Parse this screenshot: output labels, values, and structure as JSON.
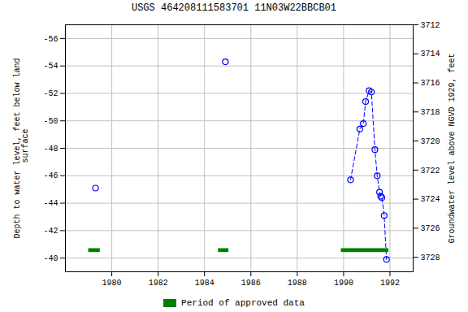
{
  "chart_data": {
    "type": "line",
    "title": "USGS 464208111583701 11N03W22BBCB01",
    "ylabel": "Depth to water level, feet below land\n surface",
    "y2label": "Groundwater level above NGVD 1929, feet",
    "xlim": [
      1978,
      1993
    ],
    "xticks": [
      1980,
      1982,
      1984,
      1986,
      1988,
      1990,
      1992
    ],
    "ylim": [
      -39,
      -57
    ],
    "yticks": [
      -56,
      -54,
      -52,
      -50,
      -48,
      -46,
      -44,
      -42,
      -40
    ],
    "y2lim": [
      3729,
      3712
    ],
    "y2ticks": [
      3712,
      3714,
      3716,
      3718,
      3720,
      3722,
      3724,
      3726,
      3728
    ],
    "grid": true,
    "legend": "bottom",
    "x": [
      1979.3,
      1984.9,
      1990.3,
      1990.7,
      1990.85,
      1990.95,
      1991.1,
      1991.2,
      1991.35,
      1991.45,
      1991.55,
      1991.6,
      1991.65,
      1991.75,
      1991.85
    ],
    "series": [
      {
        "type": "scatter",
        "color": "#0000ff",
        "marker": "circle",
        "values": [
          -45.1,
          -54.3,
          -45.7,
          -49.4,
          -49.8,
          -51.4,
          -52.2,
          -52.1,
          -47.9,
          -46.0,
          -44.8,
          -44.5,
          -44.4,
          -43.1,
          -39.9
        ]
      },
      {
        "type": "line",
        "color": "#0000ff",
        "line_style": "dashed",
        "values": [
          null,
          null,
          -45.7,
          -49.4,
          -49.8,
          -51.4,
          -52.2,
          -52.1,
          -47.9,
          -46.0,
          -44.8,
          -44.5,
          -44.4,
          -43.1,
          -39.9
        ]
      },
      {
        "type": "bar",
        "name": "Period of approved data",
        "color": "#008000",
        "orientation": "horizontal",
        "starts": [
          1979.0,
          1984.6,
          1989.9
        ],
        "ends": [
          1979.5,
          1985.05,
          1991.95
        ],
        "y": -40.55,
        "height": 0.28
      }
    ]
  }
}
